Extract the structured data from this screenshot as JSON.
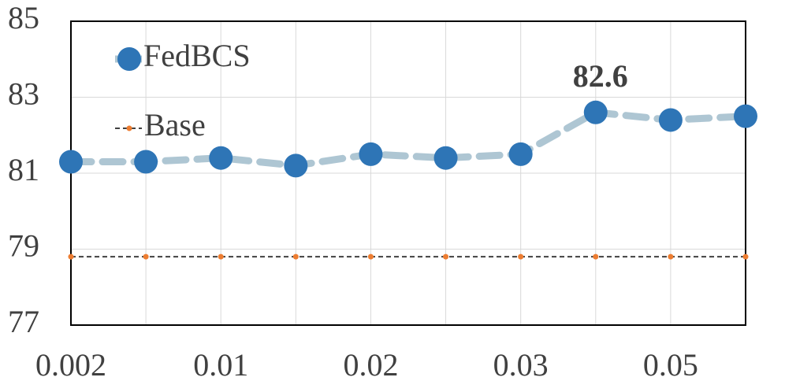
{
  "chart_data": {
    "type": "line",
    "categories": [
      "0.002",
      null,
      "0.01",
      null,
      "0.02",
      null,
      "0.03",
      null,
      "0.05",
      null
    ],
    "series": [
      {
        "name": "FedBCS",
        "color": "#2e75b6",
        "line_color": "#aec6d3",
        "values": [
          81.3,
          81.3,
          81.4,
          81.2,
          81.5,
          81.4,
          81.5,
          82.6,
          82.4,
          82.5
        ],
        "labeled_index": 7
      },
      {
        "name": "Base",
        "color": "#ed7d31",
        "line_color": "#404040",
        "values": [
          78.8,
          78.8,
          78.8,
          78.8,
          78.8,
          78.8,
          78.8,
          78.8,
          78.8,
          78.8
        ]
      }
    ],
    "ylim": [
      77,
      85
    ],
    "yticks": [
      77,
      79,
      81,
      83,
      85
    ],
    "grid": true,
    "legend": "top-left"
  }
}
